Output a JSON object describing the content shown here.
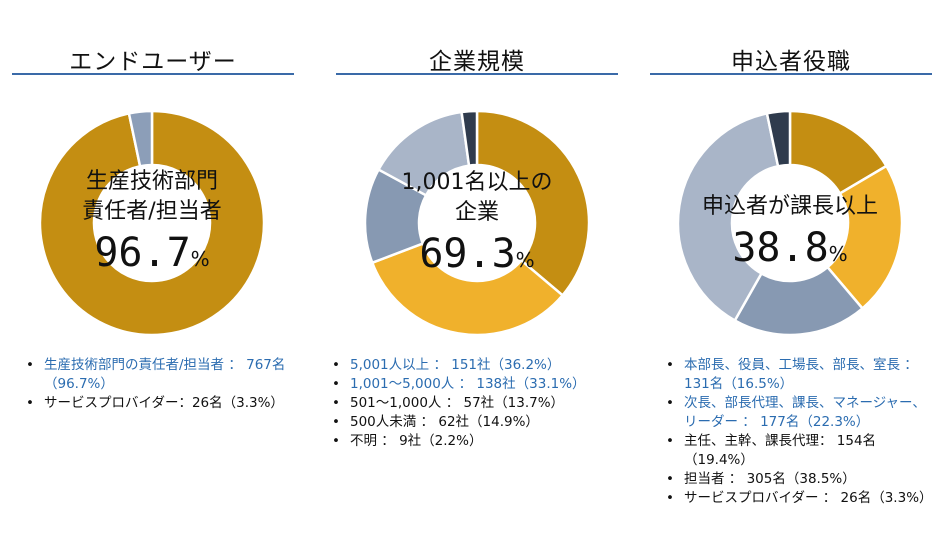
{
  "panels": [
    {
      "title": "エンドユーザー",
      "center_lines": [
        "生産技術部門",
        "責任者/担当者"
      ],
      "center_value": "96.7",
      "center_unit": "%",
      "legend": [
        {
          "text": "生産技術部門の責任者/担当者 ： 767名（96.7%）",
          "color": "blue"
        },
        {
          "text": "サービスプロバイダー：26名（3.3%）",
          "color": "dark"
        }
      ]
    },
    {
      "title": "企業規模",
      "center_lines": [
        "1,001名以上の",
        "企業"
      ],
      "center_value": "69.3",
      "center_unit": "%",
      "legend": [
        {
          "text": "5,001人以上 ： 151社（36.2%）",
          "color": "blue"
        },
        {
          "text": "1,001～5,000人 ： 138社（33.1%）",
          "color": "blue"
        },
        {
          "text": "501～1,000人 ： 57社（13.7%）",
          "color": "dark"
        },
        {
          "text": "500人未満 ： 62社（14.9%）",
          "color": "dark"
        },
        {
          "text": "不明 ： 9社（2.2%）",
          "color": "dark"
        }
      ]
    },
    {
      "title": "申込者役職",
      "center_lines": [
        "申込者が課長以上"
      ],
      "center_value": "38.8",
      "center_unit": "%",
      "legend": [
        {
          "text": "本部長、役員、工場長、部長、室長 ： 131名（16.5%）",
          "color": "blue"
        },
        {
          "text": "次長、部長代理、課長、マネージャー、リーダー ： 177名（22.3%）",
          "color": "blue"
        },
        {
          "text": "主任、主幹、課長代理： 154名（19.4%）",
          "color": "dark"
        },
        {
          "text": "担当者 ： 305名（38.5%）",
          "color": "dark"
        },
        {
          "text": "サービスプロバイダー ： 26名（3.3%）",
          "color": "dark"
        }
      ]
    }
  ],
  "chart_data": [
    {
      "type": "pie",
      "title": "エンドユーザー",
      "categories": [
        "生産技術部門の責任者/担当者",
        "サービスプロバイダー"
      ],
      "values": [
        96.7,
        3.3
      ],
      "counts": [
        767,
        26
      ],
      "colors": [
        "#c48e12",
        "#8c9eb8"
      ]
    },
    {
      "type": "pie",
      "title": "企業規模",
      "categories": [
        "5,001人以上",
        "1,001～5,000人",
        "501～1,000人",
        "500人未満",
        "不明"
      ],
      "values": [
        36.2,
        33.1,
        13.7,
        14.9,
        2.2
      ],
      "counts": [
        151,
        138,
        57,
        62,
        9
      ],
      "colors": [
        "#c48e12",
        "#f0b12c",
        "#8799b2",
        "#a9b5c8",
        "#2f3b4d"
      ]
    },
    {
      "type": "pie",
      "title": "申込者役職",
      "categories": [
        "本部長、役員、工場長、部長、室長",
        "次長、部長代理、課長、マネージャー、リーダー",
        "主任、主幹、課長代理",
        "担当者",
        "サービスプロバイダー"
      ],
      "values": [
        16.5,
        22.3,
        19.4,
        38.5,
        3.3
      ],
      "counts": [
        131,
        177,
        154,
        305,
        26
      ],
      "colors": [
        "#c48e12",
        "#f0b12c",
        "#8799b2",
        "#a9b5c8",
        "#2f3b4d"
      ]
    }
  ]
}
